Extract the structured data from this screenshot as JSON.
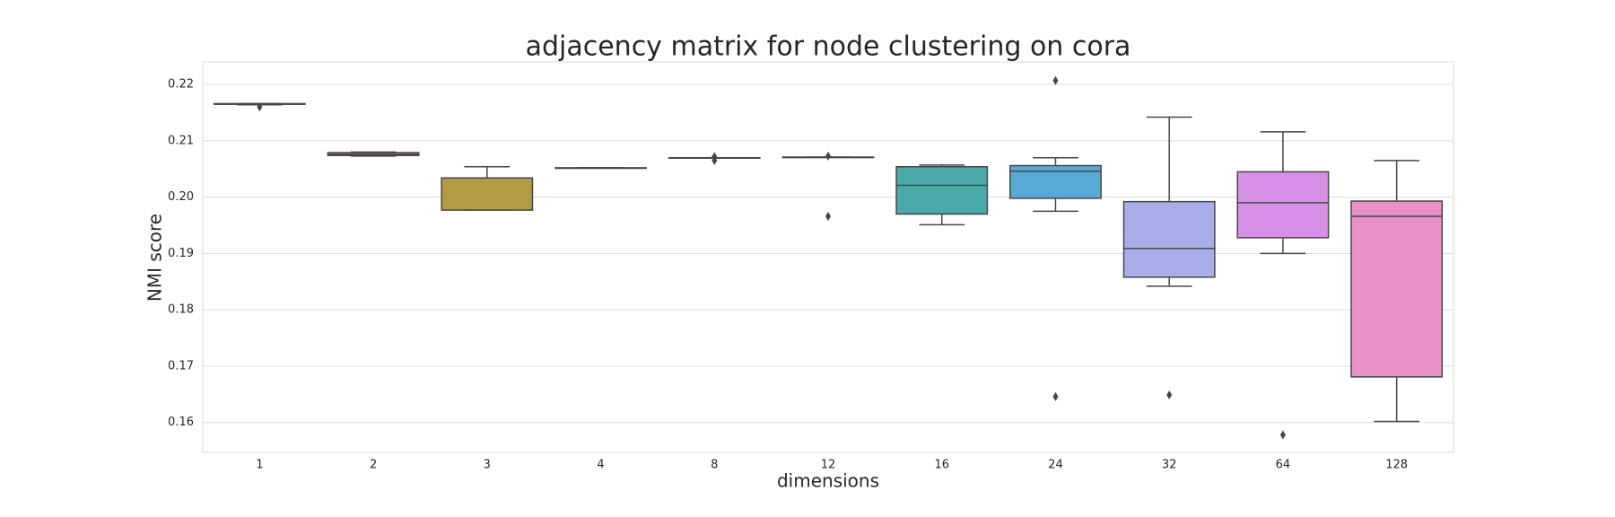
{
  "chart_data": {
    "type": "box",
    "title": "adjacency matrix for node clustering on cora",
    "x_label": "dimensions",
    "y_label": "NMI score",
    "categories": [
      "1",
      "2",
      "3",
      "4",
      "8",
      "12",
      "16",
      "24",
      "32",
      "64",
      "128"
    ],
    "boxes": [
      {
        "whislo": 0.2164,
        "q1": 0.2165,
        "median": 0.2165,
        "q3": 0.2166,
        "whishi": 0.2166,
        "outliers": [
          0.216
        ],
        "color": "#dc7d85"
      },
      {
        "whislo": 0.2073,
        "q1": 0.2074,
        "median": 0.2076,
        "q3": 0.2079,
        "whishi": 0.208,
        "outliers": [],
        "color": "#c98f4a"
      },
      {
        "whislo": 0.1977,
        "q1": 0.1977,
        "median": 0.2034,
        "q3": 0.2034,
        "whishi": 0.2054,
        "outliers": [],
        "color": "#b39b45"
      },
      {
        "whislo": 0.2052,
        "q1": 0.2052,
        "median": 0.2052,
        "q3": 0.2052,
        "whishi": 0.2052,
        "outliers": [],
        "color": "#8aa548"
      },
      {
        "whislo": 0.207,
        "q1": 0.207,
        "median": 0.207,
        "q3": 0.207,
        "whishi": 0.207,
        "outliers": [
          0.2072,
          0.2065
        ],
        "color": "#5bab6a"
      },
      {
        "whislo": 0.2071,
        "q1": 0.2071,
        "median": 0.2071,
        "q3": 0.2071,
        "whishi": 0.2071,
        "outliers": [
          0.2073,
          0.1966
        ],
        "color": "#4fab8e"
      },
      {
        "whislo": 0.1951,
        "q1": 0.197,
        "median": 0.2021,
        "q3": 0.2054,
        "whishi": 0.2057,
        "outliers": [],
        "color": "#4aa9a9"
      },
      {
        "whislo": 0.1975,
        "q1": 0.1998,
        "median": 0.2046,
        "q3": 0.2056,
        "whishi": 0.207,
        "outliers": [
          0.2207,
          0.1646
        ],
        "color": "#58a9d5"
      },
      {
        "whislo": 0.1842,
        "q1": 0.1858,
        "median": 0.1909,
        "q3": 0.1992,
        "whishi": 0.2142,
        "outliers": [
          0.1649
        ],
        "color": "#a8aeea"
      },
      {
        "whislo": 0.19,
        "q1": 0.1928,
        "median": 0.199,
        "q3": 0.2045,
        "whishi": 0.2116,
        "outliers": [
          0.1578
        ],
        "color": "#d690e8"
      },
      {
        "whislo": 0.1602,
        "q1": 0.1681,
        "median": 0.1966,
        "q3": 0.1993,
        "whishi": 0.2065,
        "outliers": [],
        "color": "#e990c8"
      }
    ],
    "ylim": [
      0.1547,
      0.224
    ],
    "yticks": [
      0.16,
      0.17,
      0.18,
      0.19,
      {
        "value": 0.2,
        "label": "0.20"
      },
      0.21,
      0.22
    ],
    "grid": true
  }
}
